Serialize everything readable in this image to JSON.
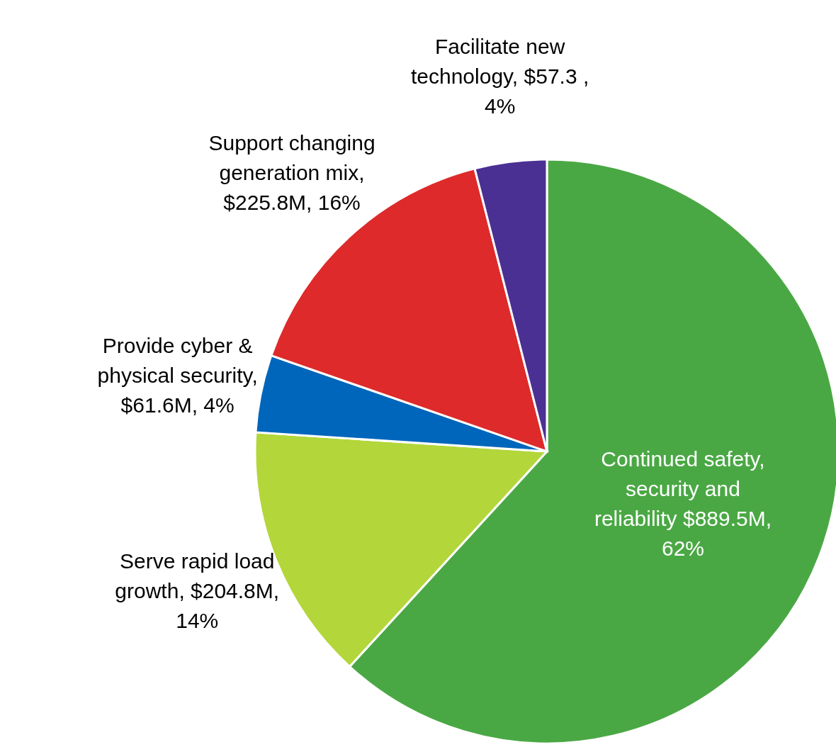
{
  "chart_data": {
    "type": "pie",
    "categories": [
      "Continued safety, security and reliability $889.5M, 62%",
      "Serve rapid load growth,  $204.8M, 14%",
      "Provide cyber & physical security, $61.6M, 4%",
      "Support changing generation mix, $225.8M, 16%",
      "Facilitate new technology, $57.3 , 4%"
    ],
    "values": [
      889.5,
      204.8,
      61.6,
      225.8,
      57.3
    ],
    "colors": [
      "#4aa844",
      "#b3d63a",
      "#0066bb",
      "#de2a2a",
      "#4b3093"
    ]
  }
}
